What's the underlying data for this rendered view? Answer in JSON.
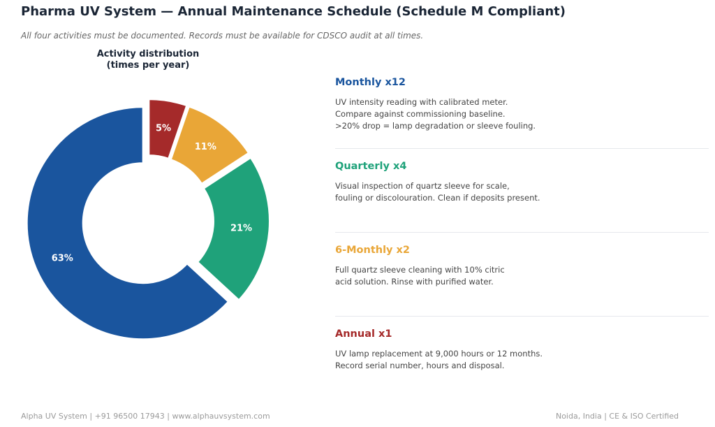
{
  "title": "Pharma UV System — Annual Maintenance Schedule (Schedule M Compliant)",
  "subtitle": "All four activities must be documented. Records must be available for CDSCO audit at all times.",
  "chart_data": {
    "type": "pie",
    "title_lines": [
      "Activity distribution",
      "(times per year)"
    ],
    "categories": [
      "Monthly",
      "Quarterly",
      "6-Monthly",
      "Annual"
    ],
    "values": [
      12,
      4,
      2,
      1
    ],
    "labels": [
      "63%",
      "21%",
      "11%",
      "5%"
    ],
    "colors": [
      "#1a559e",
      "#1fa27a",
      "#e9a637",
      "#a52a2a"
    ],
    "donut": true
  },
  "activities": [
    {
      "title": "Monthly  x12",
      "color": "#1a559e",
      "description": "UV intensity reading with calibrated meter.\nCompare against commissioning baseline.\n>20% drop = lamp degradation or sleeve fouling."
    },
    {
      "title": "Quarterly  x4",
      "color": "#1fa27a",
      "description": "Visual inspection of quartz sleeve for scale,\nfouling or discolouration. Clean if deposits present."
    },
    {
      "title": "6-Monthly  x2",
      "color": "#e9a637",
      "description": "Full quartz sleeve cleaning with 10% citric\nacid solution. Rinse with purified water."
    },
    {
      "title": "Annual  x1",
      "color": "#a52a2a",
      "description": "UV lamp replacement at 9,000 hours or 12 months.\nRecord serial number, hours and disposal."
    }
  ],
  "footer": {
    "left": "Alpha UV System  |  +91 96500 17943  |  www.alphauvsystem.com",
    "right": "Noida, India  |  CE & ISO Certified"
  }
}
